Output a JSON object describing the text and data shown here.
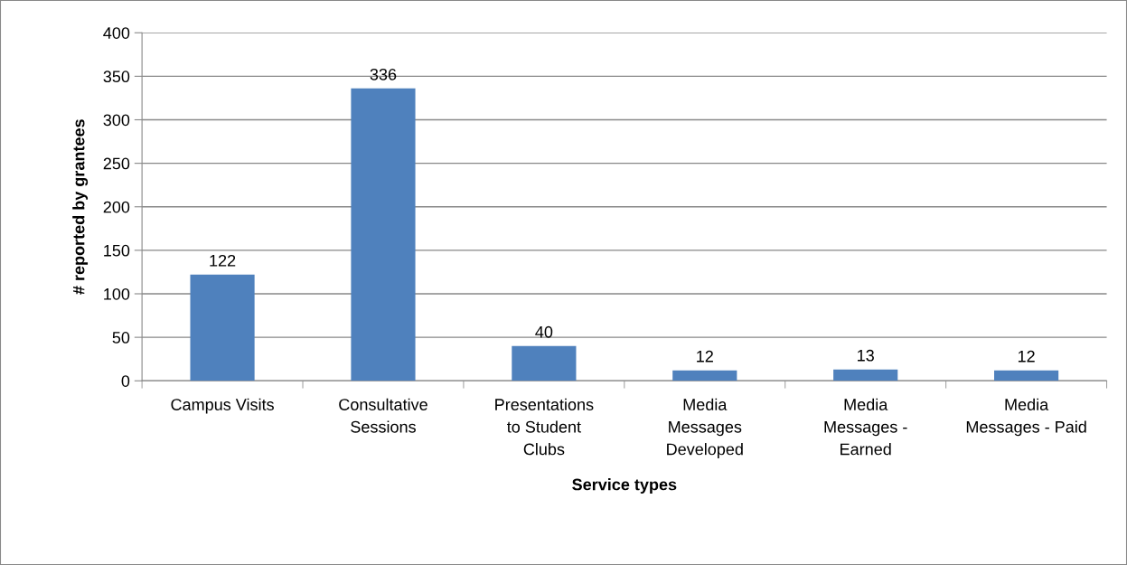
{
  "chart_data": {
    "type": "bar",
    "categories": [
      "Campus Visits",
      "Consultative\nSessions",
      "Presentations\nto Student\nClubs",
      "Media\nMessages\nDeveloped",
      "Media\nMessages -\nEarned",
      "Media\nMessages - Paid"
    ],
    "values": [
      122,
      336,
      40,
      12,
      13,
      12
    ],
    "color": "#4f81bd",
    "xlabel": "Service types",
    "ylabel": "# reported by grantees",
    "ylim": [
      0,
      400
    ],
    "yticks": [
      0,
      50,
      100,
      150,
      200,
      250,
      300,
      350,
      400
    ],
    "grid": "y",
    "data_labels": true
  }
}
